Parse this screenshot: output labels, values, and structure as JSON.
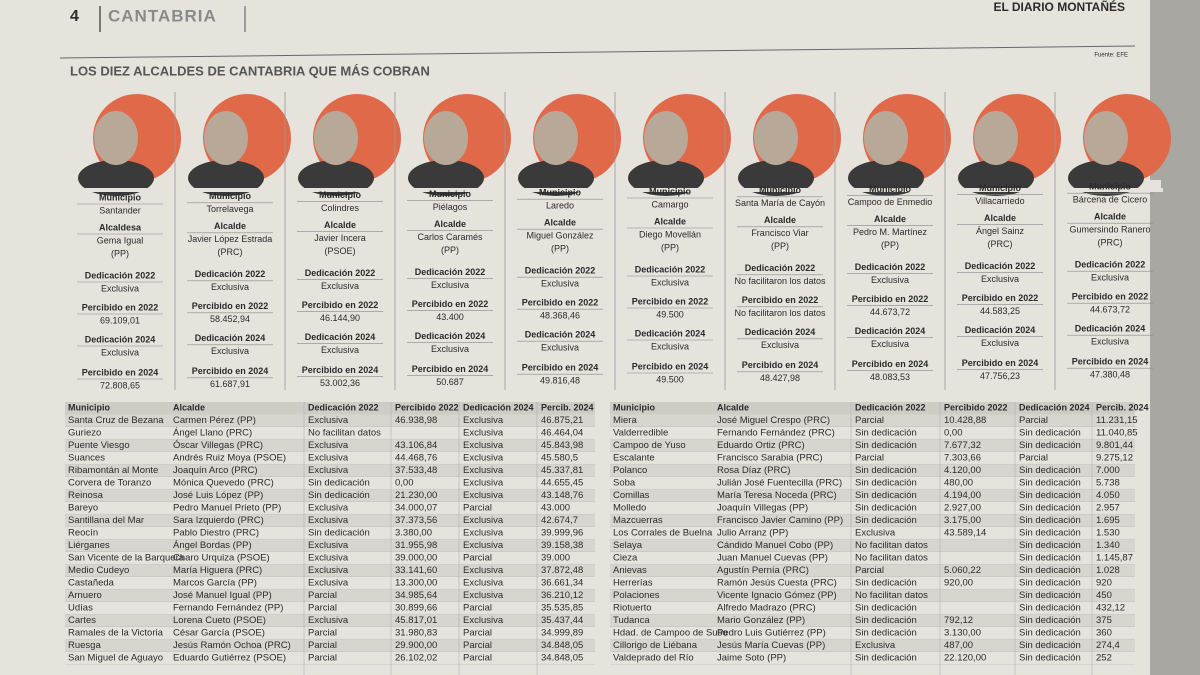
{
  "header": {
    "page_number": "4",
    "section": "CANTABRIA",
    "newspaper": "EL DIARIO MONTAÑÉS"
  },
  "source": "Fuente: EFE",
  "title": "LOS DIEZ ALCALDES DE CANTABRIA QUE MÁS COBRAN",
  "card_labels": {
    "municipio": "Municipio",
    "dedicacion_2022": "Dedicación 2022",
    "percibido_2022": "Percibido en 2022",
    "dedicacion_2024": "Dedicación 2024",
    "percibido_2024": "Percibido en 2024"
  },
  "mayors": [
    {
      "municipio": "Santander",
      "role": "Alcaldesa",
      "name": "Gema Igual",
      "party": "(PP)",
      "dedicacion_2022": "Exclusiva",
      "percibido_2022": "69.109,01",
      "dedicacion_2024": "Exclusiva",
      "percibido_2024": "72.808,65"
    },
    {
      "municipio": "Torrelavega",
      "role": "Alcalde",
      "name": "Javier López Estrada",
      "party": "(PRC)",
      "dedicacion_2022": "Exclusiva",
      "percibido_2022": "58.452,94",
      "dedicacion_2024": "Exclusiva",
      "percibido_2024": "61.687,91"
    },
    {
      "municipio": "Colindres",
      "role": "Alcalde",
      "name": "Javier Incera",
      "party": "(PSOE)",
      "dedicacion_2022": "Exclusiva",
      "percibido_2022": "46.144,90",
      "dedicacion_2024": "Exclusiva",
      "percibido_2024": "53.002,36"
    },
    {
      "municipio": "Piélagos",
      "role": "Alcalde",
      "name": "Carlos Caramés",
      "party": "(PP)",
      "dedicacion_2022": "Exclusiva",
      "percibido_2022": "43.400",
      "dedicacion_2024": "Exclusiva",
      "percibido_2024": "50.687"
    },
    {
      "municipio": "Laredo",
      "role": "Alcalde",
      "name": "Miguel González",
      "party": "(PP)",
      "dedicacion_2022": "Exclusiva",
      "percibido_2022": "48.368,46",
      "dedicacion_2024": "Exclusiva",
      "percibido_2024": "49.816,48"
    },
    {
      "municipio": "Camargo",
      "role": "Alcalde",
      "name": "Diego Movellán",
      "party": "(PP)",
      "dedicacion_2022": "Exclusiva",
      "percibido_2022": "49.500",
      "dedicacion_2024": "Exclusiva",
      "percibido_2024": "49.500"
    },
    {
      "municipio": "Santa María de Cayón",
      "role": "Alcalde",
      "name": "Francisco Viar",
      "party": "(PP)",
      "dedicacion_2022": "No facilitaron los datos",
      "percibido_2022": "No facilitaron los datos",
      "dedicacion_2024": "Exclusiva",
      "percibido_2024": "48.427,98"
    },
    {
      "municipio": "Campoo de Enmedio",
      "role": "Alcalde",
      "name": "Pedro M. Martínez",
      "party": "(PP)",
      "dedicacion_2022": "Exclusiva",
      "percibido_2022": "44.673,72",
      "dedicacion_2024": "Exclusiva",
      "percibido_2024": "48.083,53"
    },
    {
      "municipio": "Villacarriedo",
      "role": "Alcalde",
      "name": "Ángel Sainz",
      "party": "(PRC)",
      "dedicacion_2022": "Exclusiva",
      "percibido_2022": "44.583,25",
      "dedicacion_2024": "Exclusiva",
      "percibido_2024": "47.756,23"
    },
    {
      "municipio": "Bárcena de Cicero",
      "role": "Alcalde",
      "name": "Gumersindo Ranero",
      "party": "(PRC)",
      "dedicacion_2022": "Exclusiva",
      "percibido_2022": "44.673,72",
      "dedicacion_2024": "Exclusiva",
      "percibido_2024": "47.380,48"
    }
  ],
  "tables": [
    {
      "columns": [
        "Municipio",
        "Alcalde",
        "Dedicación 2022",
        "Percibido 2022",
        "Dedicación 2024",
        "Percib. 2024"
      ],
      "rows": [
        [
          "Santa Cruz de Bezana",
          "Carmen Pérez (PP)",
          "Exclusiva",
          "46.938,98",
          "Exclusiva",
          "46.875,21"
        ],
        [
          "Guriezo",
          "Ángel Llano (PRC)",
          "No facilitan datos",
          null,
          "Exclusiva",
          "46.464,04"
        ],
        [
          "Puente Viesgo",
          "Óscar Villegas (PRC)",
          "Exclusiva",
          "43.106,84",
          "Exclusiva",
          "45.843,98"
        ],
        [
          "Suances",
          "Andrés Ruiz Moya (PSOE)",
          "Exclusiva",
          "44.468,76",
          "Exclusiva",
          "45.580,5"
        ],
        [
          "Ribamontán al Monte",
          "Joaquín Arco (PRC)",
          "Exclusiva",
          "37.533,48",
          "Exclusiva",
          "45.337,81"
        ],
        [
          "Corvera de Toranzo",
          "Mónica Quevedo (PRC)",
          "Sin dedicación",
          "0,00",
          "Exclusiva",
          "44.655,45"
        ],
        [
          "Reinosa",
          "José Luis López (PP)",
          "Sin dedicación",
          "21.230,00",
          "Exclusiva",
          "43.148,76"
        ],
        [
          "Bareyo",
          "Pedro Manuel Prieto (PP)",
          "Exclusiva",
          "34.000,07",
          "Parcial",
          "43.000"
        ],
        [
          "Santillana del Mar",
          "Sara Izquierdo (PRC)",
          "Exclusiva",
          "37.373,56",
          "Exclusiva",
          "42.674,7"
        ],
        [
          "Reocín",
          "Pablo Diestro (PRC)",
          "Sin dedicación",
          "3.380,00",
          "Exclusiva",
          "39.999,96"
        ],
        [
          "Liérganes",
          "Ángel Bordas (PP)",
          "Exclusiva",
          "31.955,98",
          "Exclusiva",
          "39.158,38"
        ],
        [
          "San Vicente de la Barquera",
          "Charo Urquiza (PSOE)",
          "Exclusiva",
          "39.000,00",
          "Parcial",
          "39.000"
        ],
        [
          "Medio Cudeyo",
          "María Higuera (PRC)",
          "Exclusiva",
          "33.141,60",
          "Exclusiva",
          "37.872,48"
        ],
        [
          "Castañeda",
          "Marcos García (PP)",
          "Exclusiva",
          "13.300,00",
          "Exclusiva",
          "36.661,34"
        ],
        [
          "Arnuero",
          "José Manuel Igual (PP)",
          "Parcial",
          "34.985,64",
          "Exclusiva",
          "36.210,12"
        ],
        [
          "Udías",
          "Fernando Fernández (PP)",
          "Parcial",
          "30.899,66",
          "Parcial",
          "35.535,85"
        ],
        [
          "Cartes",
          "Lorena Cueto (PSOE)",
          "Exclusiva",
          "45.817,01",
          "Exclusiva",
          "35.437,44"
        ],
        [
          "Ramales de la Victoria",
          "César García (PSOE)",
          "Parcial",
          "31.980,83",
          "Parcial",
          "34.999,89"
        ],
        [
          "Ruesga",
          "Jesús Ramón Ochoa (PRC)",
          "Parcial",
          "29.900,00",
          "Parcial",
          "34.848,05"
        ],
        [
          "San Miguel de Aguayo",
          "Eduardo Gutiérrez (PSOE)",
          "Parcial",
          "26.102,02",
          "Parcial",
          "34.848,05"
        ]
      ]
    },
    {
      "columns": [
        "Municipio",
        "Alcalde",
        "Dedicación 2022",
        "Percibido 2022",
        "Dedicación 2024",
        "Percib. 2024"
      ],
      "rows": [
        [
          "Miera",
          "José Miguel Crespo (PRC)",
          "Parcial",
          "10.428,88",
          "Parcial",
          "11.231,15"
        ],
        [
          "Valderredible",
          "Fernando Fernández (PRC)",
          "Sin dedicación",
          "0,00",
          "Sin dedicación",
          "11.040,85"
        ],
        [
          "Campoo de Yuso",
          "Eduardo Ortiz (PRC)",
          "Sin dedicación",
          "7.677,32",
          "Sin dedicación",
          "9.801,44"
        ],
        [
          "Escalante",
          "Francisco Sarabia (PRC)",
          "Parcial",
          "7.303,66",
          "Parcial",
          "9.275,12"
        ],
        [
          "Polanco",
          "Rosa Díaz (PRC)",
          "Sin dedicación",
          "4.120,00",
          "Sin dedicación",
          "7.000"
        ],
        [
          "Soba",
          "Julián José Fuentecilla (PRC)",
          "Sin dedicación",
          "480,00",
          "Sin dedicación",
          "5.738"
        ],
        [
          "Comillas",
          "María Teresa Noceda (PRC)",
          "Sin dedicación",
          "4.194,00",
          "Sin dedicación",
          "4.050"
        ],
        [
          "Molledo",
          "Joaquín Villegas (PP)",
          "Sin dedicación",
          "2.927,00",
          "Sin dedicación",
          "2.957"
        ],
        [
          "Mazcuerras",
          "Francisco Javier Camino (PP)",
          "Sin dedicación",
          "3.175,00",
          "Sin dedicación",
          "1.695"
        ],
        [
          "Los Corrales de Buelna",
          "Julio Arranz (PP)",
          "Exclusiva",
          "43.589,14",
          "Sin dedicación",
          "1.530"
        ],
        [
          "Selaya",
          "Cándido Manuel Cobo (PP)",
          "No facilitan datos",
          null,
          "Sin dedicación",
          "1.340"
        ],
        [
          "Cieza",
          "Juan Manuel Cuevas (PP)",
          "No facilitan datos",
          null,
          "Sin dedicación",
          "1.145,87"
        ],
        [
          "Anievas",
          "Agustín Pernía (PRC)",
          "Parcial",
          "5.060,22",
          "Sin dedicación",
          "1.028"
        ],
        [
          "Herrerías",
          "Ramón Jesús Cuesta (PRC)",
          "Sin dedicación",
          "920,00",
          "Sin dedicación",
          "920"
        ],
        [
          "Polaciones",
          "Vicente Ignacio Gómez (PP)",
          "No facilitan datos",
          null,
          "Sin dedicación",
          "450"
        ],
        [
          "Riotuerto",
          "Alfredo Madrazo (PRC)",
          "Sin dedicación",
          null,
          "Sin dedicación",
          "432,12"
        ],
        [
          "Tudanca",
          "Mario González (PP)",
          "Sin dedicación",
          "792,12",
          "Sin dedicación",
          "375"
        ],
        [
          "Hdad. de Campoo de Suso",
          "Pedro Luis Gutiérrez (PP)",
          "Sin dedicación",
          "3.130,00",
          "Sin dedicación",
          "360"
        ],
        [
          "Cillorigo de Liébana",
          "Jesús María Cuevas (PP)",
          "Exclusiva",
          "487,00",
          "Sin dedicación",
          "274,4"
        ],
        [
          "Valdeprado del Río",
          "Jaime Soto (PP)",
          "Sin dedicación",
          "22.120,00",
          "Sin dedicación",
          "252"
        ]
      ]
    }
  ]
}
